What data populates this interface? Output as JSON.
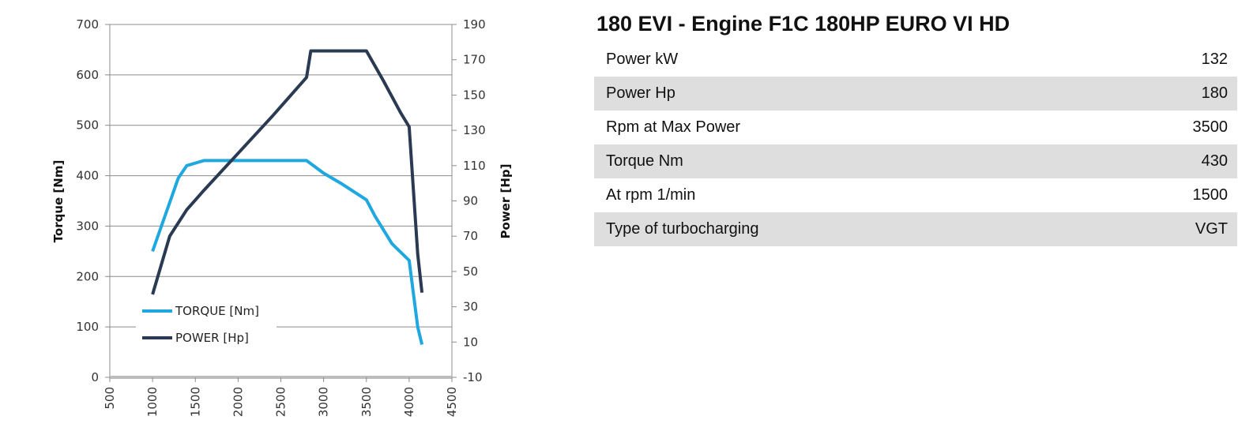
{
  "chart_data": {
    "type": "line",
    "title": "",
    "xlabel": "",
    "ylabel": "Torque [Nm]",
    "y2label": "Power [Hp]",
    "xlim": [
      500,
      4500
    ],
    "ylim": [
      0,
      700
    ],
    "y2lim": [
      -10,
      190
    ],
    "xticks": [
      "500",
      "1000",
      "1500",
      "2000",
      "2500",
      "3000",
      "3500",
      "4000",
      "4500"
    ],
    "yticks": [
      "0",
      "100",
      "200",
      "300",
      "400",
      "500",
      "600",
      "700"
    ],
    "y2ticks": [
      "-10",
      "10",
      "30",
      "50",
      "70",
      "90",
      "110",
      "130",
      "150",
      "170",
      "190"
    ],
    "grid": true,
    "legend": "bottom-left",
    "series": [
      {
        "name": "TORQUE [Nm]",
        "axis": "left",
        "color": "#1fa8e0",
        "points": [
          [
            1000,
            250
          ],
          [
            1300,
            395
          ],
          [
            1400,
            420
          ],
          [
            1600,
            430
          ],
          [
            2000,
            430
          ],
          [
            2500,
            430
          ],
          [
            2800,
            430
          ],
          [
            3000,
            405
          ],
          [
            3200,
            385
          ],
          [
            3500,
            352
          ],
          [
            3600,
            320
          ],
          [
            3800,
            265
          ],
          [
            4000,
            232
          ],
          [
            4100,
            100
          ],
          [
            4150,
            65
          ]
        ]
      },
      {
        "name": "POWER [Hp]",
        "axis": "right",
        "color": "#2a3a52",
        "points": [
          [
            1000,
            37
          ],
          [
            1200,
            70
          ],
          [
            1400,
            85
          ],
          [
            1600,
            96
          ],
          [
            2000,
            117
          ],
          [
            2400,
            138
          ],
          [
            2800,
            160
          ],
          [
            2850,
            175
          ],
          [
            3500,
            175
          ],
          [
            3700,
            158
          ],
          [
            3900,
            140
          ],
          [
            4000,
            132
          ],
          [
            4100,
            60
          ],
          [
            4150,
            38
          ]
        ]
      }
    ]
  },
  "spec": {
    "title": "180 EVI - Engine F1C 180HP EURO VI HD",
    "rows": [
      {
        "label": "Power kW",
        "value": "132"
      },
      {
        "label": "Power Hp",
        "value": "180"
      },
      {
        "label": "Rpm at Max Power",
        "value": "3500"
      },
      {
        "label": "Torque Nm",
        "value": "430"
      },
      {
        "label": "At rpm 1/min",
        "value": "1500"
      },
      {
        "label": "Type of turbocharging",
        "value": "VGT"
      }
    ]
  }
}
